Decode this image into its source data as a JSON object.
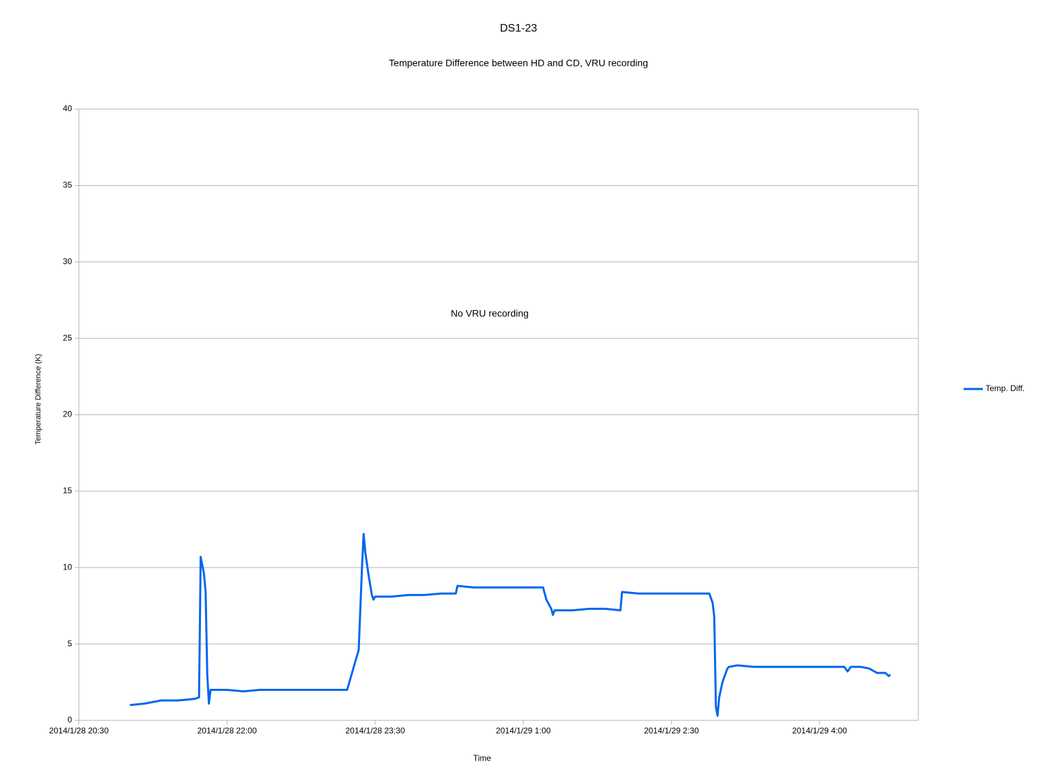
{
  "chart_data": {
    "type": "line",
    "title": "DS1-23",
    "subtitle": "Temperature Difference between HD and CD, VRU recording",
    "x_label": "Time",
    "y_label": "Temperature Difference (K)",
    "annotation": "No VRU recording",
    "x": [
      "2014/1/28 21:01",
      "2014/1/28 21:10",
      "2014/1/28 21:20",
      "2014/1/28 21:30",
      "2014/1/28 21:40",
      "2014/1/28 21:43",
      "2014/1/28 21:44",
      "2014/1/28 21:46",
      "2014/1/28 21:47",
      "2014/1/28 21:48",
      "2014/1/28 21:49",
      "2014/1/28 21:50",
      "2014/1/28 22:00",
      "2014/1/28 22:10",
      "2014/1/28 22:20",
      "2014/1/28 22:30",
      "2014/1/28 22:40",
      "2014/1/28 22:50",
      "2014/1/28 23:00",
      "2014/1/28 23:10",
      "2014/1/28 23:13",
      "2014/1/28 23:17",
      "2014/1/28 23:20",
      "2014/1/28 23:22",
      "2014/1/28 23:23",
      "2014/1/28 23:24",
      "2014/1/28 23:26",
      "2014/1/28 23:28",
      "2014/1/28 23:29",
      "2014/1/28 23:30",
      "2014/1/28 23:40",
      "2014/1/28 23:50",
      "2014/1/29 0:00",
      "2014/1/29 0:10",
      "2014/1/29 0:19",
      "2014/1/29 0:20",
      "2014/1/29 0:30",
      "2014/1/29 0:40",
      "2014/1/29 0:50",
      "2014/1/29 1:00",
      "2014/1/29 1:10",
      "2014/1/29 1:12",
      "2014/1/29 1:14",
      "2014/1/29 1:17",
      "2014/1/29 1:18",
      "2014/1/29 1:19",
      "2014/1/29 1:30",
      "2014/1/29 1:40",
      "2014/1/29 1:50",
      "2014/1/29 1:59",
      "2014/1/29 2:00",
      "2014/1/29 2:10",
      "2014/1/29 2:20",
      "2014/1/29 2:30",
      "2014/1/29 2:40",
      "2014/1/29 2:53",
      "2014/1/29 2:55",
      "2014/1/29 2:56",
      "2014/1/29 2:57",
      "2014/1/29 2:58",
      "2014/1/29 2:59",
      "2014/1/29 3:01",
      "2014/1/29 3:04",
      "2014/1/29 3:05",
      "2014/1/29 3:10",
      "2014/1/29 3:20",
      "2014/1/29 3:30",
      "2014/1/29 3:40",
      "2014/1/29 3:50",
      "2014/1/29 4:00",
      "2014/1/29 4:10",
      "2014/1/29 4:15",
      "2014/1/29 4:17",
      "2014/1/29 4:19",
      "2014/1/29 4:25",
      "2014/1/29 4:30",
      "2014/1/29 4:35",
      "2014/1/29 4:40",
      "2014/1/29 4:42",
      "2014/1/29 4:43"
    ],
    "series": [
      {
        "name": "Temp. Diff.",
        "color": "#0066ee",
        "values": [
          1.0,
          1.1,
          1.3,
          1.3,
          1.4,
          1.5,
          10.7,
          9.6,
          8.4,
          3.0,
          1.1,
          2.0,
          2.0,
          1.9,
          2.0,
          2.0,
          2.0,
          2.0,
          2.0,
          2.0,
          2.0,
          3.5,
          4.6,
          10.0,
          12.2,
          11.0,
          9.5,
          8.2,
          7.9,
          8.1,
          8.1,
          8.2,
          8.2,
          8.3,
          8.3,
          8.8,
          8.7,
          8.7,
          8.7,
          8.7,
          8.7,
          8.7,
          7.9,
          7.3,
          6.9,
          7.2,
          7.2,
          7.3,
          7.3,
          7.2,
          8.4,
          8.3,
          8.3,
          8.3,
          8.3,
          8.3,
          7.7,
          6.8,
          0.9,
          0.3,
          1.5,
          2.5,
          3.4,
          3.5,
          3.6,
          3.5,
          3.5,
          3.5,
          3.5,
          3.5,
          3.5,
          3.5,
          3.2,
          3.5,
          3.5,
          3.4,
          3.1,
          3.1,
          2.9,
          3.0
        ]
      }
    ],
    "xlim": [
      "2014/1/28 20:30",
      "2014/1/29 5:00"
    ],
    "xticks": [
      "2014/1/28 20:30",
      "2014/1/28 22:00",
      "2014/1/28 23:30",
      "2014/1/29 1:00",
      "2014/1/29 2:30",
      "2014/1/29 4:00"
    ],
    "ylim": [
      0,
      40
    ],
    "yticks": [
      0,
      5,
      10,
      15,
      20,
      25,
      30,
      35,
      40
    ],
    "grid": true,
    "legend": "right"
  }
}
